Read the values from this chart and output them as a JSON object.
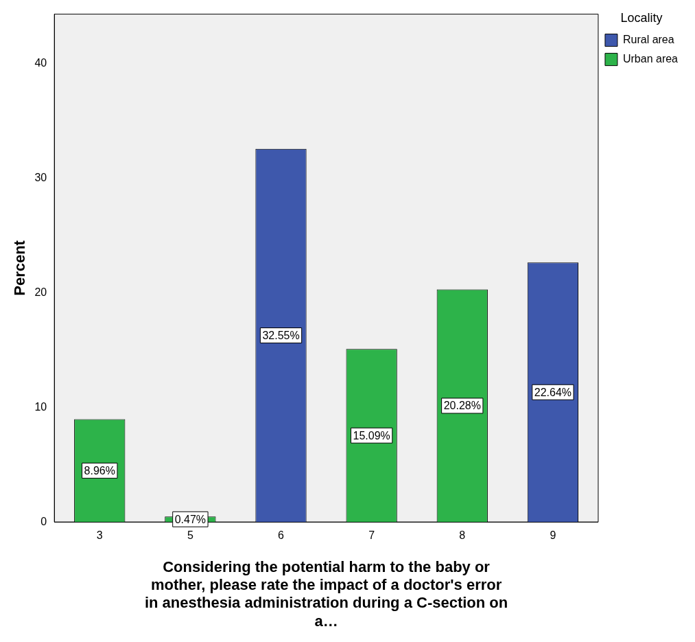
{
  "chart_data": {
    "type": "bar",
    "xlabel": "Considering the potential harm to the baby or mother, please rate the impact of a doctor's error in anesthesia administration during a C-section on a…",
    "ylabel": "Percent",
    "legend_title": "Locality",
    "categories": [
      "3",
      "5",
      "6",
      "7",
      "8",
      "9"
    ],
    "series": [
      {
        "name": "Rural area",
        "color": "#3e58ac",
        "values": [
          null,
          null,
          32.55,
          null,
          null,
          22.64
        ],
        "value_labels": [
          null,
          null,
          "32.55%",
          null,
          null,
          "22.64%"
        ]
      },
      {
        "name": "Urban area",
        "color": "#2db34a",
        "values": [
          8.96,
          0.47,
          null,
          15.09,
          20.28,
          null
        ],
        "value_labels": [
          "8.96%",
          "0.47%",
          null,
          "15.09%",
          "20.28%",
          null
        ]
      }
    ],
    "ylim": [
      0,
      44.3
    ],
    "yticks": [
      0,
      10,
      20,
      30,
      40
    ],
    "grid": false,
    "legend": "top right"
  }
}
